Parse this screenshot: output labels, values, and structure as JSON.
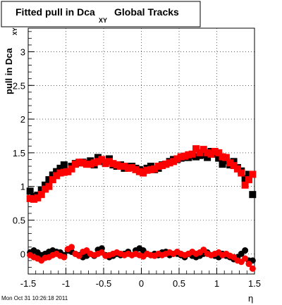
{
  "chart_data": {
    "type": "scatter",
    "title": {
      "main": "Fitted pull in Dca",
      "subscript": "XY",
      "suffix": "Global Tracks"
    },
    "xlabel": "η",
    "ylabel": {
      "main": "pull in Dca",
      "subscript": "XY"
    },
    "xlim": [
      -1.5,
      1.5
    ],
    "ylim": [
      -0.3,
      3.35
    ],
    "x_ticks": [
      -1.5,
      -1,
      -0.5,
      0,
      0.5,
      1,
      1.5
    ],
    "x_tick_labels": [
      "-1.5",
      "-1",
      "-0.5",
      "0",
      "0.5",
      "1",
      "1.5"
    ],
    "y_ticks": [
      0,
      0.5,
      1,
      1.5,
      2,
      2.5,
      3
    ],
    "y_tick_labels": [
      "0",
      "0.5",
      "1",
      "1.5",
      "2",
      "2.5",
      "3"
    ],
    "grid": true,
    "series": [
      {
        "color": "#000000",
        "marker": "square",
        "x": [
          -1.475,
          -1.425,
          -1.375,
          -1.325,
          -1.275,
          -1.225,
          -1.175,
          -1.125,
          -1.075,
          -1.025,
          -0.975,
          -0.925,
          -0.875,
          -0.825,
          -0.775,
          -0.725,
          -0.675,
          -0.625,
          -0.575,
          -0.525,
          -0.475,
          -0.425,
          -0.375,
          -0.325,
          -0.275,
          -0.225,
          -0.175,
          -0.125,
          -0.075,
          -0.025,
          0.025,
          0.075,
          0.125,
          0.175,
          0.225,
          0.275,
          0.325,
          0.375,
          0.425,
          0.475,
          0.525,
          0.575,
          0.625,
          0.675,
          0.725,
          0.775,
          0.825,
          0.875,
          0.925,
          0.975,
          1.025,
          1.075,
          1.125,
          1.175,
          1.225,
          1.275,
          1.325,
          1.375,
          1.425,
          1.475
        ],
        "values": [
          0.93,
          0.85,
          0.87,
          0.95,
          1.02,
          1.1,
          1.17,
          1.22,
          1.27,
          1.32,
          1.22,
          1.3,
          1.34,
          1.35,
          1.36,
          1.34,
          1.38,
          1.32,
          1.43,
          1.37,
          1.35,
          1.41,
          1.32,
          1.3,
          1.32,
          1.27,
          1.3,
          1.3,
          1.27,
          1.25,
          1.23,
          1.27,
          1.3,
          1.25,
          1.27,
          1.32,
          1.33,
          1.37,
          1.4,
          1.4,
          1.42,
          1.43,
          1.43,
          1.46,
          1.44,
          1.46,
          1.47,
          1.43,
          1.52,
          1.48,
          1.42,
          1.33,
          1.38,
          1.32,
          1.37,
          1.28,
          1.23,
          1.12,
          1.18,
          0.88
        ]
      },
      {
        "color": "#ff0000",
        "marker": "square",
        "x": [
          -1.475,
          -1.425,
          -1.375,
          -1.325,
          -1.275,
          -1.225,
          -1.175,
          -1.125,
          -1.075,
          -1.025,
          -0.975,
          -0.925,
          -0.875,
          -0.825,
          -0.775,
          -0.725,
          -0.675,
          -0.625,
          -0.575,
          -0.525,
          -0.475,
          -0.425,
          -0.375,
          -0.325,
          -0.275,
          -0.225,
          -0.175,
          -0.125,
          -0.075,
          -0.025,
          0.025,
          0.075,
          0.125,
          0.175,
          0.225,
          0.275,
          0.325,
          0.375,
          0.425,
          0.475,
          0.525,
          0.575,
          0.625,
          0.675,
          0.725,
          0.775,
          0.825,
          0.875,
          0.925,
          0.975,
          1.025,
          1.075,
          1.125,
          1.175,
          1.225,
          1.275,
          1.325,
          1.375,
          1.425,
          1.475
        ],
        "values": [
          0.82,
          0.81,
          0.83,
          0.88,
          0.96,
          1.0,
          1.1,
          1.16,
          1.2,
          1.21,
          1.22,
          1.26,
          1.33,
          1.36,
          1.35,
          1.33,
          1.33,
          1.35,
          1.37,
          1.4,
          1.34,
          1.37,
          1.34,
          1.32,
          1.3,
          1.3,
          1.27,
          1.28,
          1.25,
          1.22,
          1.2,
          1.24,
          1.25,
          1.26,
          1.3,
          1.31,
          1.33,
          1.35,
          1.37,
          1.41,
          1.44,
          1.45,
          1.47,
          1.48,
          1.56,
          1.5,
          1.55,
          1.5,
          1.48,
          1.52,
          1.5,
          1.44,
          1.43,
          1.35,
          1.31,
          1.26,
          1.2,
          1.02,
          1.1,
          1.18
        ]
      },
      {
        "color": "#000000",
        "marker": "circle",
        "x": [
          -1.475,
          -1.425,
          -1.375,
          -1.325,
          -1.275,
          -1.225,
          -1.175,
          -1.125,
          -1.075,
          -1.025,
          -0.975,
          -0.925,
          -0.875,
          -0.825,
          -0.775,
          -0.725,
          -0.675,
          -0.625,
          -0.575,
          -0.525,
          -0.475,
          -0.425,
          -0.375,
          -0.325,
          -0.275,
          -0.225,
          -0.175,
          -0.125,
          -0.075,
          -0.025,
          0.025,
          0.075,
          0.125,
          0.175,
          0.225,
          0.275,
          0.325,
          0.375,
          0.425,
          0.475,
          0.525,
          0.575,
          0.625,
          0.675,
          0.725,
          0.775,
          0.825,
          0.875,
          0.925,
          0.975,
          1.025,
          1.075,
          1.125,
          1.175,
          1.225,
          1.275,
          1.325,
          1.375,
          1.425,
          1.475
        ],
        "values": [
          0.02,
          0.05,
          0.02,
          -0.02,
          0.0,
          0.03,
          0.05,
          0.03,
          0.02,
          -0.02,
          0.05,
          0.03,
          0.0,
          -0.02,
          -0.05,
          -0.03,
          0.0,
          -0.03,
          0.06,
          0.08,
          -0.02,
          -0.05,
          -0.03,
          0.0,
          -0.02,
          0.0,
          0.03,
          -0.02,
          0.05,
          0.08,
          0.05,
          0.0,
          -0.02,
          0.0,
          -0.02,
          0.02,
          0.03,
          -0.02,
          0.0,
          0.0,
          -0.02,
          -0.05,
          0.0,
          -0.03,
          -0.05,
          -0.03,
          0.0,
          0.02,
          -0.02,
          -0.03,
          -0.05,
          0.0,
          -0.03,
          -0.05,
          -0.08,
          -0.05,
          0.0,
          0.05,
          -0.1,
          -0.1
        ]
      },
      {
        "color": "#ff0000",
        "marker": "circle",
        "x": [
          -1.475,
          -1.425,
          -1.375,
          -1.325,
          -1.275,
          -1.225,
          -1.175,
          -1.125,
          -1.075,
          -1.025,
          -0.975,
          -0.925,
          -0.875,
          -0.825,
          -0.775,
          -0.725,
          -0.675,
          -0.625,
          -0.575,
          -0.525,
          -0.475,
          -0.425,
          -0.375,
          -0.325,
          -0.275,
          -0.225,
          -0.175,
          -0.125,
          -0.075,
          -0.025,
          0.025,
          0.075,
          0.125,
          0.175,
          0.225,
          0.275,
          0.325,
          0.375,
          0.425,
          0.475,
          0.525,
          0.575,
          0.625,
          0.675,
          0.725,
          0.775,
          0.825,
          0.875,
          0.925,
          0.975,
          1.025,
          1.075,
          1.125,
          1.175,
          1.225,
          1.275,
          1.325,
          1.375,
          1.425,
          1.475
        ],
        "values": [
          -0.02,
          -0.05,
          -0.07,
          -0.1,
          -0.06,
          -0.05,
          -0.02,
          0.0,
          -0.03,
          -0.05,
          0.07,
          0.1,
          0.0,
          -0.03,
          0.03,
          0.05,
          0.0,
          -0.02,
          0.0,
          0.02,
          -0.03,
          -0.02,
          0.0,
          0.02,
          0.0,
          -0.02,
          0.0,
          -0.02,
          0.0,
          -0.02,
          -0.04,
          0.0,
          -0.02,
          -0.03,
          0.0,
          -0.02,
          0.0,
          0.02,
          0.0,
          0.03,
          0.0,
          -0.02,
          0.0,
          0.03,
          0.0,
          0.02,
          0.06,
          0.0,
          -0.02,
          0.0,
          0.02,
          -0.02,
          0.0,
          -0.03,
          -0.05,
          -0.1,
          -0.12,
          -0.07,
          -0.15,
          -0.22
        ]
      }
    ]
  },
  "timestamp": "Mon Oct 31 10:26:18 2011"
}
